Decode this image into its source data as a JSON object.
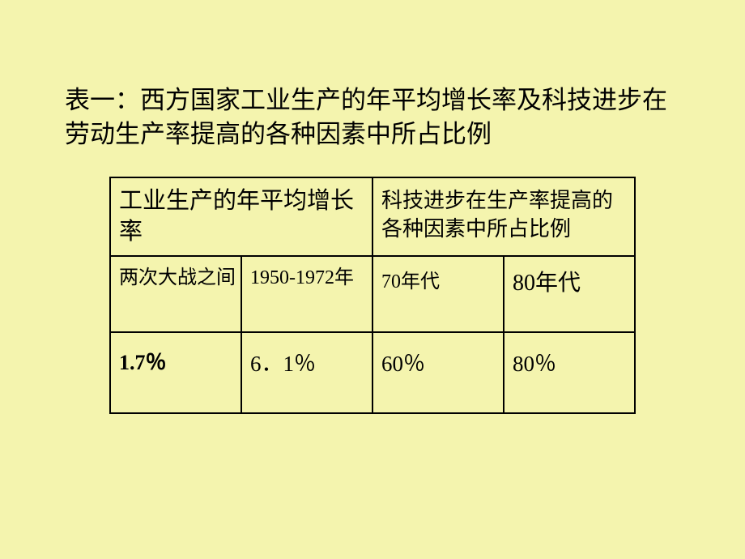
{
  "title": "表一：西方国家工业生产的年平均增长率及科技进步在劳动生产率提高的各种因素中所占比例",
  "table": {
    "header_left": "工业生产的年平均增长率",
    "header_right": "科技进步在生产率提高的各种因素中所占比例",
    "row2": {
      "c1": "两次大战之间",
      "c2": "1950-1972年",
      "c3": "70年代",
      "c4": "80年代"
    },
    "row3": {
      "c1": "1.7％",
      "c2": "6．1％",
      "c3": "60％",
      "c4": "80％"
    }
  },
  "colors": {
    "background": "#f4f4ae",
    "text": "#000000",
    "border": "#000000"
  }
}
